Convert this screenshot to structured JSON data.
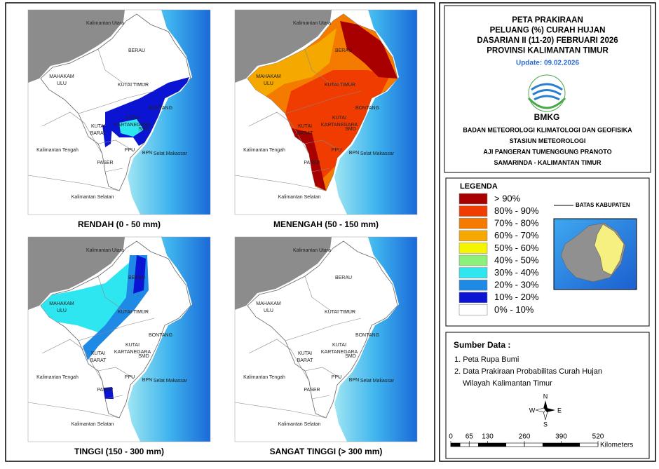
{
  "maps": [
    {
      "caption": "RENDAH (0 - 50 mm)"
    },
    {
      "caption": "MENENGAH (50 - 150 mm)"
    },
    {
      "caption": "TINGGI (150 - 300 mm)"
    },
    {
      "caption": "SANGAT TINGGI (> 300 mm)"
    }
  ],
  "map_labels": [
    {
      "lines": [
        "Kalimantan Utara"
      ]
    },
    {
      "lines": [
        "BERAU"
      ]
    },
    {
      "lines": [
        "MAHAKAM",
        "ULU"
      ]
    },
    {
      "lines": [
        "KUTAI TIMUR"
      ]
    },
    {
      "lines": [
        "BONTANG"
      ]
    },
    {
      "lines": [
        "KUTAI",
        "KARTANEGARA"
      ]
    },
    {
      "lines": [
        "SMD"
      ]
    },
    {
      "lines": [
        "KUTAI",
        "BARAT"
      ]
    },
    {
      "lines": [
        "PPU"
      ]
    },
    {
      "lines": [
        "BPN"
      ]
    },
    {
      "lines": [
        "PASER"
      ]
    },
    {
      "lines": [
        "Kalimantan Tengah"
      ]
    },
    {
      "lines": [
        "Selat Makassar"
      ]
    },
    {
      "lines": [
        "Kalimantan Selatan"
      ]
    }
  ],
  "header": {
    "title_lines": [
      "PETA PRAKIRAAN",
      "PELUANG (%) CURAH HUJAN",
      "DASARIAN II (11-20) FEBRUARI 2026",
      "PROVINSI KALIMANTAN TIMUR"
    ],
    "update": "Update: 09.02.2026",
    "logo_text": "BMKG",
    "agency_lines": [
      "BADAN METEOROLOGI KLIMATOLOGI DAN GEOFISIKA",
      "STASIUN METEOROLOGI",
      "AJI PANGERAN TUMENGGUNG PRANOTO",
      "SAMARINDA - KALIMANTAN TIMUR"
    ]
  },
  "legend": {
    "title": "LEGENDA",
    "classes": [
      {
        "label": "> 90%",
        "color": "#a80000"
      },
      {
        "label": "80% - 90%",
        "color": "#f03c00"
      },
      {
        "label": "70% - 80%",
        "color": "#f57a00"
      },
      {
        "label": "60% - 70%",
        "color": "#f5a800"
      },
      {
        "label": "50% - 60%",
        "color": "#f5f500"
      },
      {
        "label": "40% - 50%",
        "color": "#8cf07a"
      },
      {
        "label": "30% - 40%",
        "color": "#2ee6f0"
      },
      {
        "label": "20% - 30%",
        "color": "#1e8ae6"
      },
      {
        "label": "10% - 20%",
        "color": "#0a14d2"
      },
      {
        "label": "0% - 10%",
        "color": "#ffffff"
      }
    ],
    "boundary": "BATAS KABUPATEN"
  },
  "sources": {
    "title": "Sumber Data :",
    "items": [
      "1. Peta Rupa Bumi",
      "2. Data Prakiraan Probabilitas Curah Hujan",
      "Wilayah Kalimantan Timur"
    ]
  },
  "compass": {
    "n": "N",
    "e": "E",
    "s": "S",
    "w": "W"
  },
  "scale": {
    "ticks": [
      0,
      65,
      130,
      260,
      390,
      520
    ],
    "unit": "Kilometers"
  }
}
